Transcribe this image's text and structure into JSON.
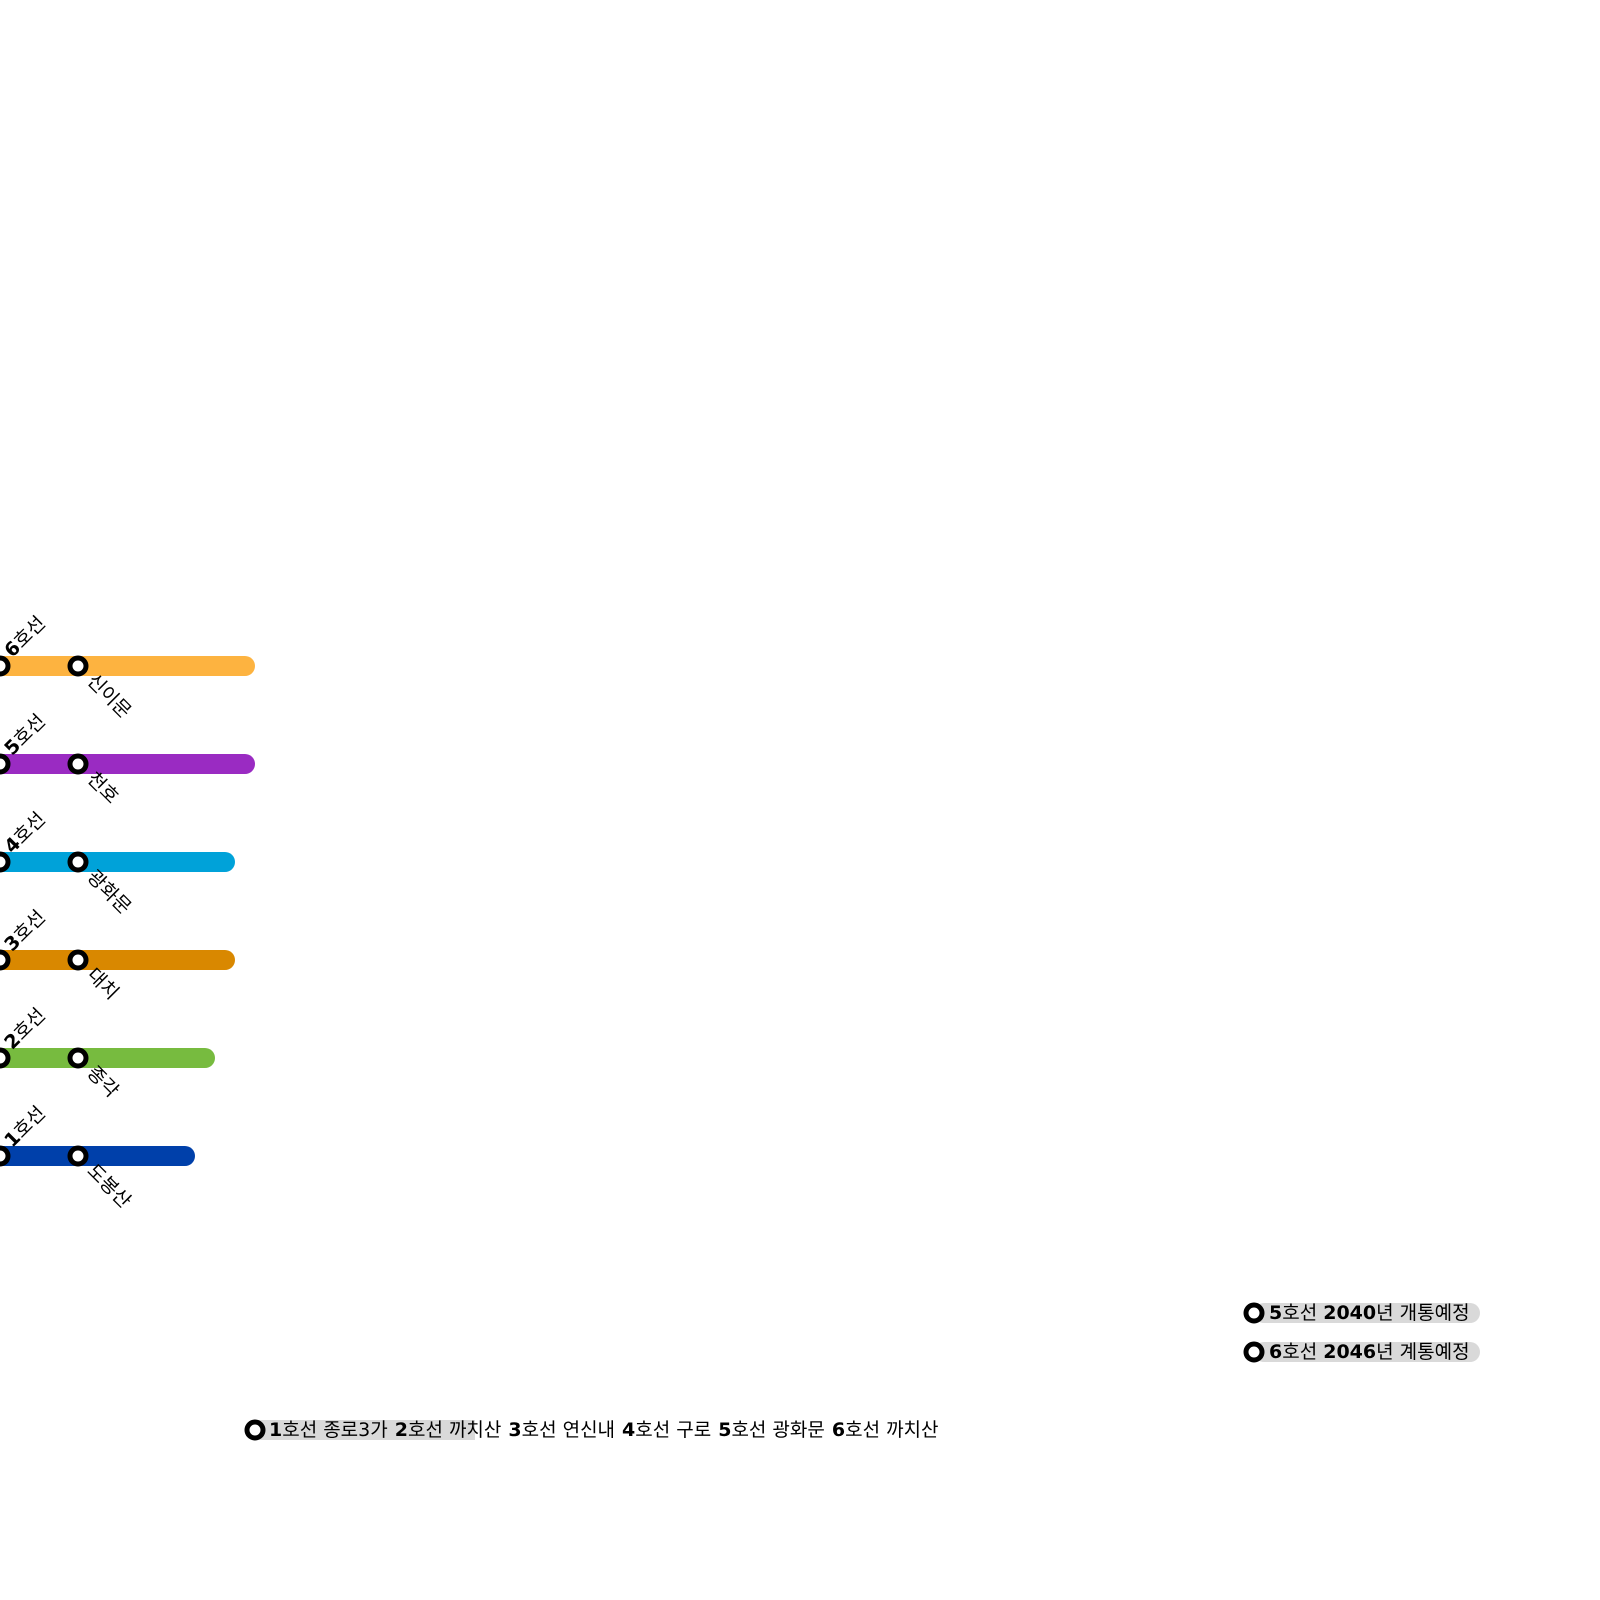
{
  "lines": [
    {
      "num": "6",
      "unit": "호선",
      "station": "신이문",
      "color": "#fdb340"
    },
    {
      "num": "5",
      "unit": "호선",
      "station": "천호",
      "color": "#9a2bc2"
    },
    {
      "num": "4",
      "unit": "호선",
      "station": "광화문",
      "color": "#00a2d9"
    },
    {
      "num": "3",
      "unit": "호선",
      "station": "대치",
      "color": "#d98800"
    },
    {
      "num": "2",
      "unit": "호선",
      "station": "종각",
      "color": "#77bb3f"
    },
    {
      "num": "1",
      "unit": "호선",
      "station": "도봉산",
      "color": "#0040aa"
    }
  ],
  "notices": [
    {
      "num": "5",
      "unit": "호선 ",
      "year": "2040",
      "rest": "년 개통예정"
    },
    {
      "num": "6",
      "unit": "호선 ",
      "year": "2046",
      "rest": "년 계통예정"
    }
  ],
  "route": [
    {
      "num": "1",
      "unit": "호선",
      "station": "종로3가"
    },
    {
      "num": "2",
      "unit": "호선",
      "station": "까치산"
    },
    {
      "num": "3",
      "unit": "호선",
      "station": "연신내"
    },
    {
      "num": "4",
      "unit": "호선",
      "station": "구로"
    },
    {
      "num": "5",
      "unit": "호선",
      "station": "광화문"
    },
    {
      "num": "6",
      "unit": "호선",
      "station": "까치산"
    }
  ]
}
